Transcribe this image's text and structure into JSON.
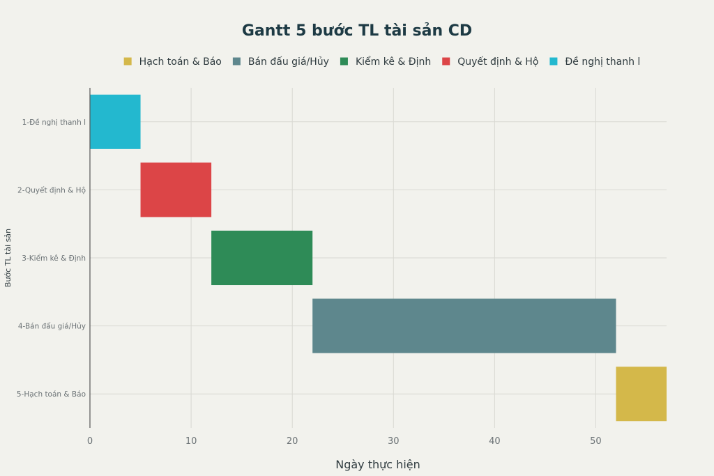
{
  "chart_data": {
    "type": "gantt",
    "title": "Gantt 5 bước TL tài sản CD",
    "xlabel": "Ngày thực hiện",
    "ylabel": "Bước TL tài sản",
    "xlim": [
      0,
      57
    ],
    "xticks": [
      0,
      10,
      20,
      30,
      40,
      50
    ],
    "grid": true,
    "legend_position": "top",
    "legend": [
      {
        "label": "Hạch toán & Báo",
        "color": "#d4b84a"
      },
      {
        "label": "Bán đấu giá/Hủy",
        "color": "#5e878d"
      },
      {
        "label": "Kiểm kê & Định",
        "color": "#2e8b57"
      },
      {
        "label": "Quyết định & Hộ",
        "color": "#dc4547"
      },
      {
        "label": "Đề nghị thanh l",
        "color": "#23b8cf"
      }
    ],
    "tasks": [
      {
        "category": "1-Đề nghị thanh l",
        "start": 0,
        "end": 5,
        "color": "#23b8cf"
      },
      {
        "category": "2-Quyết định & Hộ",
        "start": 5,
        "end": 12,
        "color": "#dc4547"
      },
      {
        "category": "3-Kiểm kê & Định",
        "start": 12,
        "end": 22,
        "color": "#2e8b57"
      },
      {
        "category": "4-Bán đấu giá/Hủy",
        "start": 22,
        "end": 52,
        "color": "#5e878d"
      },
      {
        "category": "5-Hạch toán & Báo",
        "start": 52,
        "end": 57,
        "color": "#d4b84a"
      }
    ]
  }
}
